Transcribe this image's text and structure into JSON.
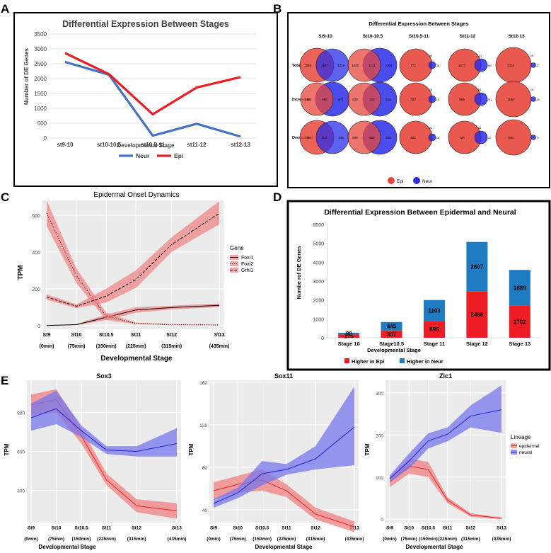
{
  "panel_letters": {
    "a": "A",
    "b": "B",
    "c": "C",
    "d": "D",
    "e": "E"
  },
  "chart_data": [
    {
      "id": "A",
      "type": "line",
      "title": "Differential Expression Between Stages",
      "xlabel": "Developmental Stage",
      "ylabel": "Number of DE Genes",
      "categories": [
        "st9-10",
        "st10-10.5",
        "st10.5-11",
        "st11-12",
        "st12-13"
      ],
      "ylim": [
        0,
        3500
      ],
      "yticks": [
        0,
        500,
        1000,
        1500,
        2000,
        2500,
        3000,
        3500
      ],
      "grid": true,
      "legend": "bottom",
      "series": [
        {
          "name": "Neur",
          "color": "#4472c4",
          "values": [
            2560,
            2130,
            80,
            480,
            50
          ]
        },
        {
          "name": "Epi",
          "color": "#ed1c24",
          "values": [
            2860,
            2150,
            800,
            1700,
            2050
          ]
        }
      ]
    },
    {
      "id": "B",
      "type": "venn-grid",
      "title": "Differential Expression Between Stages",
      "columns": [
        "St9-10",
        "St10-10.5",
        "St10.5-11",
        "St11-12",
        "St12-13"
      ],
      "rows": [
        "Total",
        "Increasing",
        "Decreasing"
      ],
      "legend": [
        {
          "name": "Epi",
          "color": "#e8473c"
        },
        {
          "name": "Neur",
          "color": "#2a2de8"
        }
      ],
      "cells": [
        [
          {
            "epi_only": "1329",
            "overlap": "1537",
            "neur_only": "1016"
          },
          {
            "epi_only": "1029",
            "overlap": "1121",
            "neur_only": "1003",
            "neur_bigger": true
          },
          {
            "epi_only": "772",
            "overlap": "40",
            "neur_only": "38"
          },
          {
            "epi_only": "1572",
            "overlap": "141",
            "neur_only": "350"
          },
          {
            "epi_only": "2034",
            "overlap": "15",
            "neur_only": "37"
          }
        ],
        [
          {
            "epi_only": "565",
            "overlap": "590",
            "neur_only": "571",
            "neur_bigger": true
          },
          {
            "epi_only": "525",
            "overlap": "317",
            "neur_only": "615",
            "neur_bigger": true
          },
          {
            "epi_only": "380",
            "overlap": "18",
            "neur_only": "15"
          },
          {
            "epi_only": "859",
            "overlap": "65",
            "neur_only": "291"
          },
          {
            "epi_only": "1188",
            "overlap": "15",
            "neur_only": "16"
          }
        ],
        [
          {
            "epi_only": "758",
            "overlap": "947",
            "neur_only": "445"
          },
          {
            "epi_only": "509",
            "overlap": "803",
            "neur_only": "515",
            "neur_bigger": true
          },
          {
            "epi_only": "492",
            "overlap": "22",
            "neur_only": "18"
          },
          {
            "epi_only": "726",
            "overlap": "65",
            "neur_only": "72"
          },
          {
            "epi_only": "846",
            "overlap": "",
            "neur_only": "8"
          }
        ]
      ]
    },
    {
      "id": "C",
      "type": "line",
      "title": "Epidermal Onset Dynamics",
      "xlabel": "Developmental Stage",
      "ylabel": "TPM",
      "categories": [
        "St9",
        "St10",
        "St10.5",
        "St11",
        "St12",
        "St13"
      ],
      "sublabels": [
        "(0min)",
        "(75min)",
        "(150min)",
        "(225min)",
        "(315min)",
        "(435min)"
      ],
      "x_minutes": [
        0,
        75,
        150,
        225,
        315,
        435
      ],
      "ylim": [
        -20,
        680
      ],
      "yticks": [
        0,
        200,
        400,
        600
      ],
      "legend_title": "Gene",
      "legend": "right",
      "series": [
        {
          "name": "Foxi1",
          "dash": "solid",
          "values": [
            0,
            5,
            45,
            85,
            98,
            110
          ],
          "lower": [
            0,
            2,
            30,
            70,
            88,
            100
          ],
          "upper": [
            3,
            8,
            60,
            100,
            108,
            120
          ]
        },
        {
          "name": "Foxi2",
          "dash": "dotted",
          "values": [
            610,
            270,
            50,
            12,
            5,
            3
          ],
          "lower": [
            540,
            230,
            30,
            8,
            2,
            1
          ],
          "upper": [
            680,
            310,
            70,
            16,
            8,
            5
          ]
        },
        {
          "name": "Grhl1",
          "dash": "dashed",
          "values": [
            155,
            105,
            160,
            250,
            440,
            610
          ],
          "lower": [
            140,
            95,
            125,
            205,
            400,
            550
          ],
          "upper": [
            170,
            115,
            200,
            300,
            480,
            675
          ]
        }
      ]
    },
    {
      "id": "D",
      "type": "bar",
      "title": "Differential Expression Between Epidermal and Neural",
      "xlabel": "Developmental Stage",
      "ylabel": "Numbe rof DE Genes",
      "categories": [
        "Stage 10",
        "Stage10.5",
        "Stage 11",
        "Stage 12",
        "Stage 13"
      ],
      "ylim": [
        0,
        6000
      ],
      "yticks": [
        0,
        1000,
        2000,
        3000,
        4000,
        5000,
        6000
      ],
      "legend": "bottom",
      "stacked": true,
      "series": [
        {
          "name": "Higher in Epi",
          "color": "#ee1c25",
          "values": [
            175,
            387,
            895,
            2466,
            1702
          ]
        },
        {
          "name": "Higher in Neur",
          "color": "#1f7bc2",
          "values": [
            89,
            445,
            1103,
            2607,
            1889
          ]
        }
      ]
    },
    {
      "id": "E1",
      "type": "line",
      "title": "Sox3",
      "xlabel": "Developmental Stage",
      "ylabel": "TPM",
      "categories": [
        "St9",
        "St10",
        "St10.5",
        "St11",
        "St12",
        "St13"
      ],
      "sublabels": [
        "(0min)",
        "(75min)",
        "(150min)",
        "(225min)",
        "(315min)",
        "(435min)"
      ],
      "x_minutes": [
        0,
        75,
        150,
        225,
        315,
        435
      ],
      "ylim": [
        50,
        1150
      ],
      "yticks": [
        300,
        600,
        900
      ],
      "series": [
        {
          "name": "epidermal",
          "values": [
            960,
            1000,
            720,
            380,
            180,
            140
          ],
          "lower": [
            880,
            900,
            660,
            340,
            130,
            80
          ],
          "upper": [
            1040,
            1080,
            780,
            430,
            230,
            200
          ]
        },
        {
          "name": "neural",
          "values": [
            860,
            930,
            760,
            610,
            600,
            660
          ],
          "lower": [
            760,
            810,
            710,
            580,
            560,
            560
          ],
          "upper": [
            970,
            1070,
            800,
            640,
            640,
            780
          ]
        }
      ]
    },
    {
      "id": "E2",
      "type": "line",
      "title": "Sox11",
      "xlabel": "Developmental Stage",
      "ylabel": "TPM",
      "categories": [
        "St9",
        "St10",
        "St10.5",
        "St11",
        "St12",
        "St13"
      ],
      "sublabels": [
        "(0min)",
        "(75min)",
        "(150min)",
        "(225min)",
        "(315min)",
        "(435min)"
      ],
      "x_minutes": [
        0,
        75,
        150,
        225,
        315,
        435
      ],
      "ylim": [
        28,
        162
      ],
      "yticks": [
        40,
        80,
        120,
        160
      ],
      "series": [
        {
          "name": "epidermal",
          "values": [
            58,
            64,
            68,
            58,
            36,
            24
          ],
          "lower": [
            50,
            56,
            58,
            52,
            31,
            19
          ],
          "upper": [
            66,
            72,
            78,
            64,
            42,
            29
          ]
        },
        {
          "name": "neural",
          "values": [
            46,
            56,
            74,
            78,
            88,
            118
          ],
          "lower": [
            42,
            51,
            63,
            73,
            78,
            82
          ],
          "upper": [
            50,
            61,
            86,
            83,
            100,
            156
          ]
        }
      ]
    },
    {
      "id": "E3",
      "type": "line",
      "title": "Zic1",
      "xlabel": "Developmental Stage",
      "ylabel": "TPM",
      "categories": [
        "St9",
        "St10",
        "St10.5",
        "St11",
        "St12",
        "St13"
      ],
      "sublabels": [
        "(0min)",
        "(75min)",
        "(150min)",
        "(225min)",
        "(315min)",
        "(435min)"
      ],
      "x_minutes": [
        0,
        75,
        150,
        225,
        315,
        435
      ],
      "ylim": [
        -8,
        330
      ],
      "yticks": [
        0,
        100,
        200,
        300
      ],
      "legend_title": "Lineage",
      "legend": "right",
      "series": [
        {
          "name": "epidermal",
          "values": [
            88,
            126,
            118,
            45,
            10,
            2
          ],
          "lower": [
            76,
            108,
            100,
            38,
            6,
            0
          ],
          "upper": [
            100,
            144,
            136,
            52,
            14,
            4
          ]
        },
        {
          "name": "neural",
          "values": [
            96,
            138,
            186,
            202,
            245,
            260
          ],
          "lower": [
            88,
            120,
            168,
            185,
            218,
            205
          ],
          "upper": [
            104,
            156,
            204,
            218,
            270,
            318
          ]
        }
      ]
    }
  ]
}
